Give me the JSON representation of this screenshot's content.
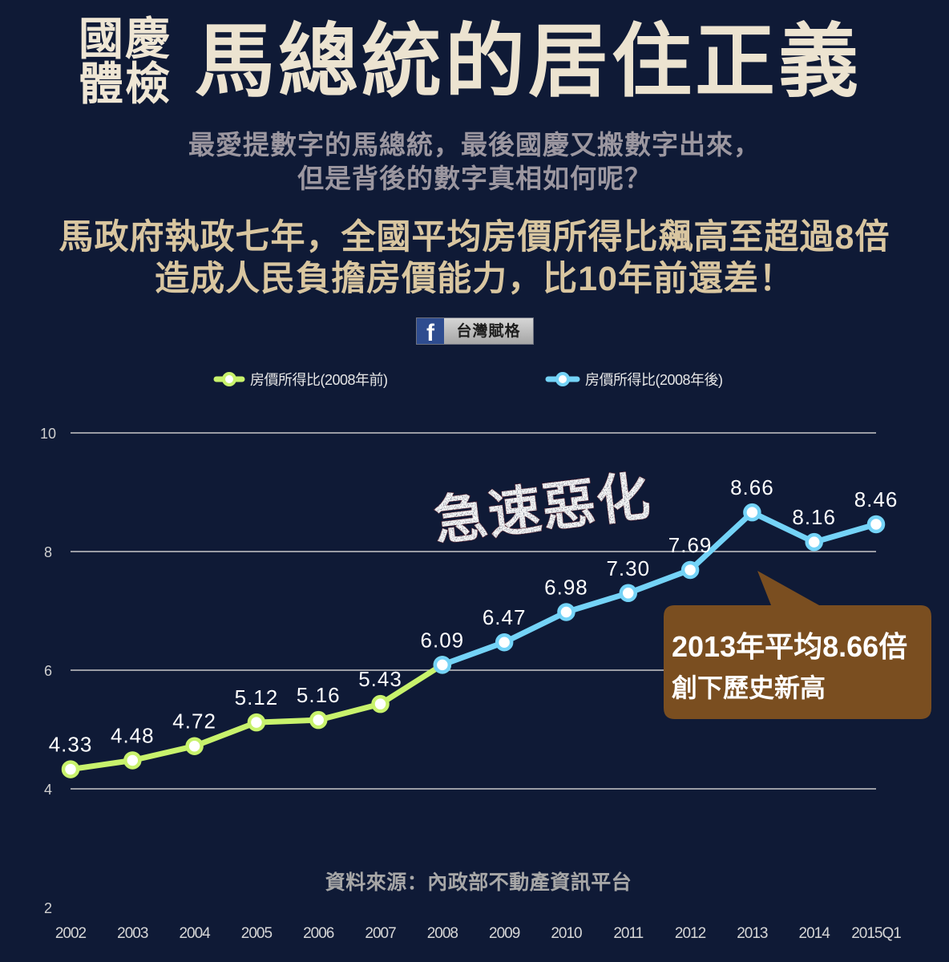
{
  "header": {
    "badge_line1": "國慶",
    "badge_line2": "體檢",
    "title": "馬總統的居住正義"
  },
  "subtitle": {
    "line1": "最愛提數字的馬總統，最後國慶又搬數字出來，",
    "line2": "但是背後的數字真相如何呢？"
  },
  "headline": {
    "line1": "馬政府執政七年，全國平均房價所得比飆高至超過8倍",
    "line2": "造成人民負擔房價能力，比10年前還差！"
  },
  "fb_badge": {
    "icon": "facebook-icon",
    "logo_letter": "f",
    "label": "台灣賦格"
  },
  "colors": {
    "background": "#0f1a36",
    "title": "#ece3d0",
    "subtitle": "#9c97a0",
    "headline": "#d9c6a0",
    "grid": "#c8c8c8",
    "callout": "#7a4e20"
  },
  "chart_data": {
    "type": "line",
    "x": [
      "2002",
      "2003",
      "2004",
      "2005",
      "2006",
      "2007",
      "2008",
      "2009",
      "2010",
      "2011",
      "2012",
      "2013",
      "2014",
      "2015Q1"
    ],
    "series": [
      {
        "name": "房價所得比(2008年前)",
        "color": "#c8f26c",
        "values": [
          4.33,
          4.48,
          4.72,
          5.12,
          5.16,
          5.43,
          6.09,
          null,
          null,
          null,
          null,
          null,
          null,
          null
        ]
      },
      {
        "name": "房價所得比(2008年後)",
        "color": "#74d3f7",
        "values": [
          null,
          null,
          null,
          null,
          null,
          null,
          6.09,
          6.47,
          6.98,
          7.3,
          7.69,
          8.66,
          8.16,
          8.46
        ]
      }
    ],
    "data_labels": [
      "4.33",
      "4.48",
      "4.72",
      "5.12",
      "5.16",
      "5.43",
      "6.09",
      "6.47",
      "6.98",
      "7.30",
      "7.69",
      "8.66",
      "8.16",
      "8.46"
    ],
    "ylim": [
      2,
      10
    ],
    "yticks": [
      2,
      4,
      6,
      8,
      10
    ],
    "grid": true,
    "legend": "top-center",
    "annotations": {
      "stamp": "急速惡化",
      "callout": {
        "line1": "2013年平均8.66倍",
        "line2": "創下歷史新高"
      }
    },
    "source": "資料來源：內政部不動產資訊平台"
  }
}
